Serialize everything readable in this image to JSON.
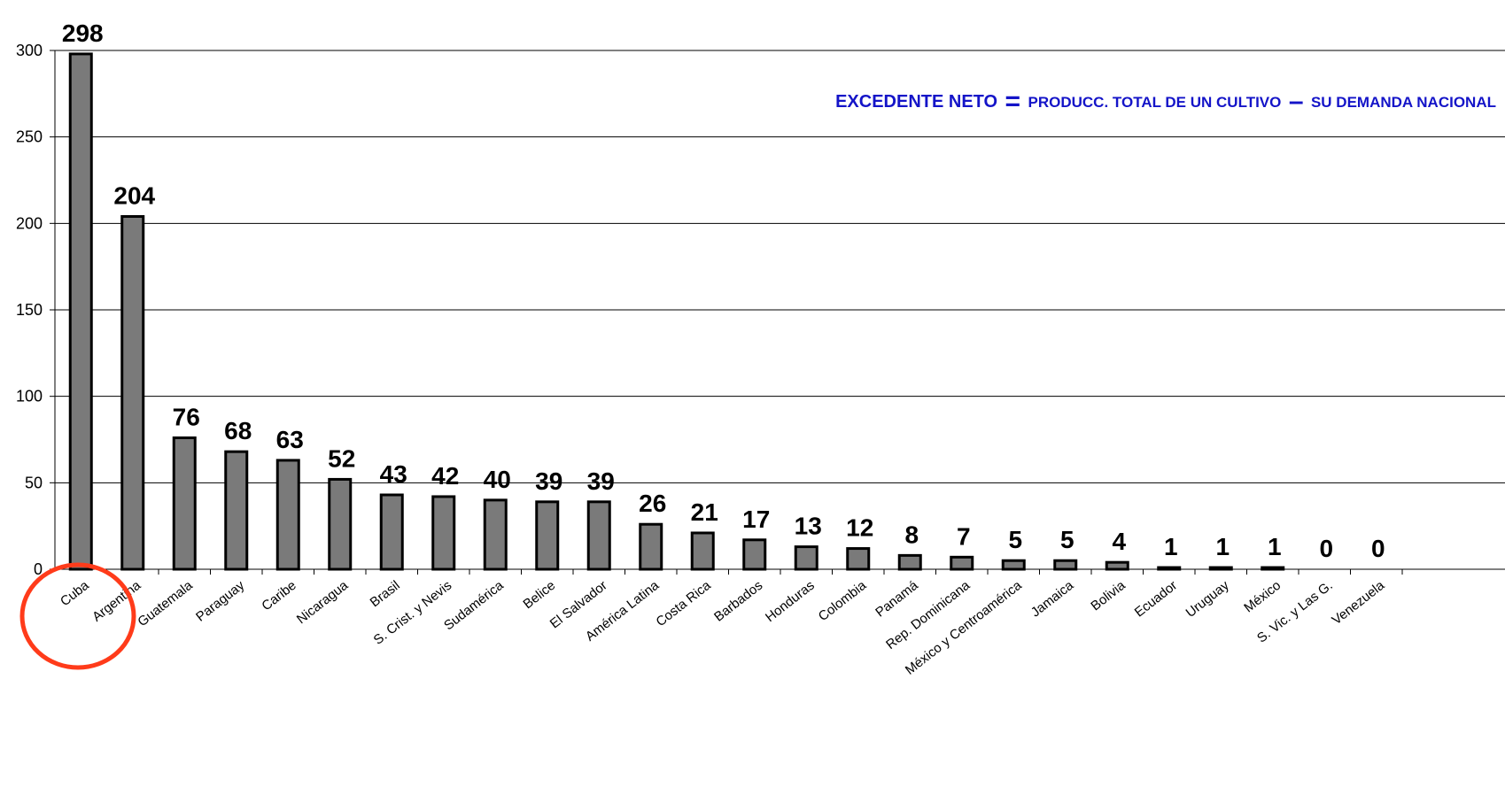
{
  "annotation": {
    "term": "EXCEDENTE NETO",
    "equals": "=",
    "part1": "PRODUCC. TOTAL DE UN CULTIVO",
    "minus": "–",
    "part2": "SU DEMANDA NACIONAL"
  },
  "colors": {
    "bar": "#7a7a7a",
    "bar_stroke": "#000000",
    "highlight": "#ff3b1a",
    "annotation": "#1414c8"
  },
  "chart_data": {
    "type": "bar",
    "title": "",
    "xlabel": "",
    "ylabel": "",
    "ylim": [
      0,
      300
    ],
    "yticks": [
      0,
      50,
      100,
      150,
      200,
      250,
      300
    ],
    "grid": true,
    "categories": [
      "Cuba",
      "Argentina",
      "Guatemala",
      "Paraguay",
      "Caribe",
      "Nicaragua",
      "Brasil",
      "S. Crist. y Nevis",
      "Sudamérica",
      "Belice",
      "El Salvador",
      "América Latina",
      "Costa Rica",
      "Barbados",
      "Honduras",
      "Colombia",
      "Panamá",
      "Rep. Dominicana",
      "México y Centroamérica",
      "Jamaica",
      "Bolivia",
      "Ecuador",
      "Uruguay",
      "México",
      "S. Vic. y Las G.",
      "Venezuela"
    ],
    "values": [
      298,
      204,
      76,
      68,
      63,
      52,
      43,
      42,
      40,
      39,
      39,
      26,
      21,
      17,
      13,
      12,
      8,
      7,
      5,
      5,
      4,
      1,
      1,
      1,
      0,
      0
    ],
    "highlighted": [
      "Cuba",
      "Argentina"
    ]
  }
}
